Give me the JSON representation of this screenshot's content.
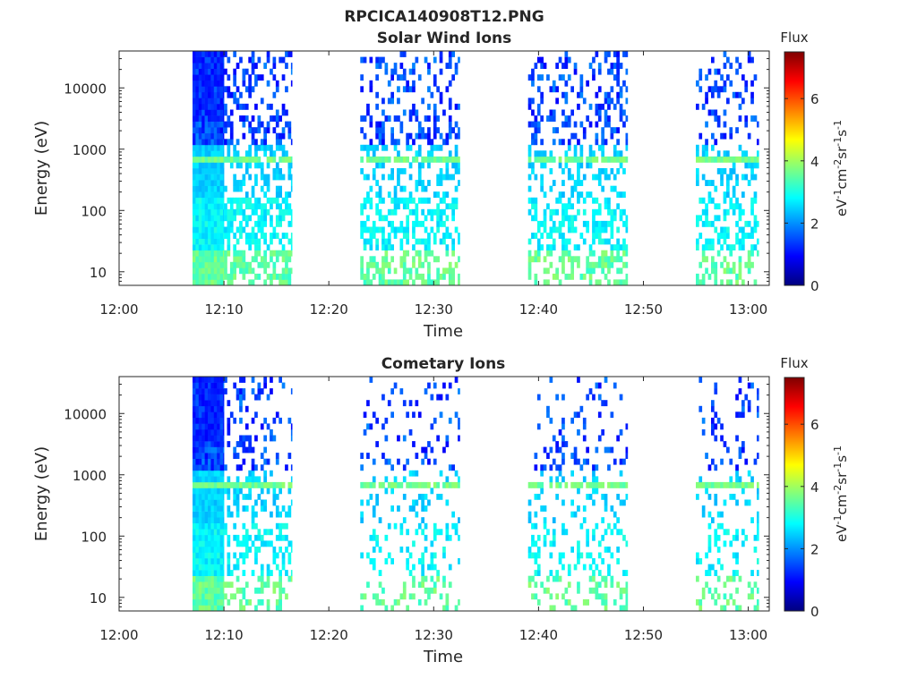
{
  "figure": {
    "title": "RPCICA140908T12.PNG"
  },
  "chart_data": [
    {
      "type": "heatmap",
      "title": "Solar Wind Ions",
      "xlabel": "Time",
      "ylabel": "Energy (eV)",
      "x_ticks": [
        "12:00",
        "12:10",
        "12:20",
        "12:30",
        "12:40",
        "12:50",
        "13:00"
      ],
      "x_range_minutes": [
        0,
        62
      ],
      "y_scale": "log",
      "y_ticks": [
        "10",
        "100",
        "1000",
        "10000"
      ],
      "y_range": [
        6,
        40000
      ],
      "colorbar": {
        "title": "Flux",
        "label": "eV-1cm-2sr-1s-1",
        "range": [
          0,
          7.5
        ],
        "ticks": [
          "0",
          "2",
          "4",
          "6"
        ],
        "colormap": "jet"
      },
      "bursts": [
        {
          "start_min": 7.0,
          "end_min": 10.0,
          "density": "continuous",
          "peak_energy_ev": 600
        },
        {
          "start_min": 10.0,
          "end_min": 16.5,
          "density": 0.45,
          "peak_energy_ev": 600
        },
        {
          "start_min": 23.0,
          "end_min": 32.5,
          "density": 0.35,
          "peak_energy_ev": 600
        },
        {
          "start_min": 39.0,
          "end_min": 48.5,
          "density": 0.35,
          "peak_energy_ev": 600
        },
        {
          "start_min": 55.0,
          "end_min": 61.0,
          "density": 0.3,
          "peak_energy_ev": 600
        }
      ]
    },
    {
      "type": "heatmap",
      "title": "Cometary Ions",
      "xlabel": "Time",
      "ylabel": "Energy (eV)",
      "x_ticks": [
        "12:00",
        "12:10",
        "12:20",
        "12:30",
        "12:40",
        "12:50",
        "13:00"
      ],
      "x_range_minutes": [
        0,
        62
      ],
      "y_scale": "log",
      "y_ticks": [
        "10",
        "100",
        "1000",
        "10000"
      ],
      "y_range": [
        6,
        40000
      ],
      "colorbar": {
        "title": "Flux",
        "label": "eV-1cm-2sr-1s-1",
        "range": [
          0,
          7.5
        ],
        "ticks": [
          "0",
          "2",
          "4",
          "6"
        ],
        "colormap": "jet"
      },
      "bursts": [
        {
          "start_min": 7.0,
          "end_min": 10.0,
          "density": "continuous",
          "peak_energy_ev": 600
        },
        {
          "start_min": 10.0,
          "end_min": 16.5,
          "density": 0.3,
          "peak_energy_ev": 600
        },
        {
          "start_min": 23.0,
          "end_min": 32.5,
          "density": 0.2,
          "peak_energy_ev": 600
        },
        {
          "start_min": 39.0,
          "end_min": 48.5,
          "density": 0.2,
          "peak_energy_ev": 600
        },
        {
          "start_min": 55.0,
          "end_min": 61.0,
          "density": 0.18,
          "peak_energy_ev": 600
        }
      ]
    }
  ]
}
